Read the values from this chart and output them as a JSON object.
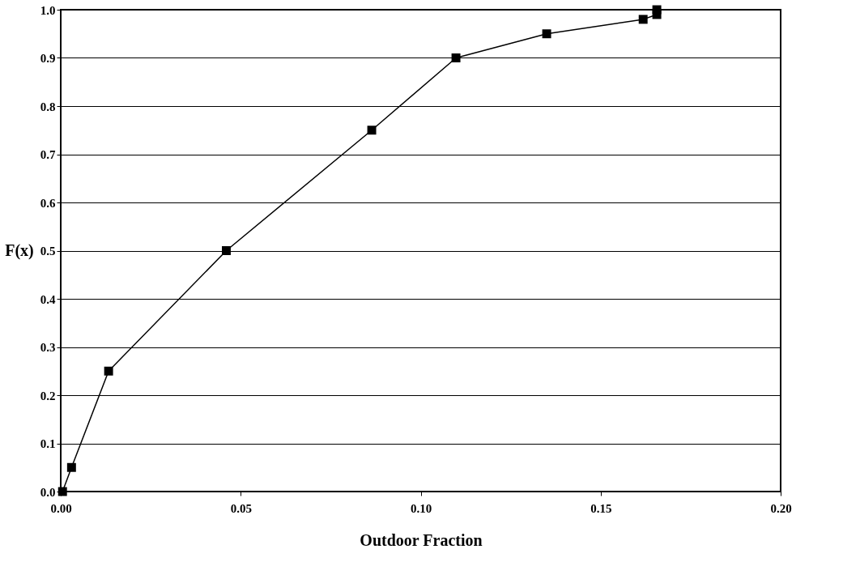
{
  "chart_data": {
    "type": "line",
    "xlabel": "Outdoor Fraction",
    "ylabel": "F(x)",
    "x": [
      0.0005,
      0.003,
      0.0133,
      0.046,
      0.0864,
      0.1098,
      0.135,
      0.1618,
      0.1656,
      0.1656
    ],
    "series": [
      {
        "color": "#000000",
        "values": [
          0.0,
          0.05,
          0.25,
          0.5,
          0.75,
          0.9,
          0.95,
          0.98,
          0.99,
          1.0
        ]
      }
    ],
    "xlim": [
      0,
      0.2
    ],
    "ylim": [
      0,
      1
    ],
    "xticks": [
      {
        "value": 0,
        "label": "0.00"
      },
      {
        "value": 0.05,
        "label": "0.05"
      },
      {
        "value": 0.1,
        "label": "0.10"
      },
      {
        "value": 0.15,
        "label": "0.15"
      },
      {
        "value": 0.2,
        "label": "0.20"
      }
    ],
    "yticks": [
      {
        "value": 0,
        "label": "0.0"
      },
      {
        "value": 0.1,
        "label": "0.1"
      },
      {
        "value": 0.2,
        "label": "0.2"
      },
      {
        "value": 0.3,
        "label": "0.3"
      },
      {
        "value": 0.4,
        "label": "0.4"
      },
      {
        "value": 0.5,
        "label": "0.5"
      },
      {
        "value": 0.6,
        "label": "0.6"
      },
      {
        "value": 0.7,
        "label": "0.7"
      },
      {
        "value": 0.8,
        "label": "0.8"
      },
      {
        "value": 0.9,
        "label": "0.9"
      },
      {
        "value": 1,
        "label": "1.0"
      }
    ],
    "grid": "y",
    "marker": "square",
    "line_style": "solid"
  }
}
